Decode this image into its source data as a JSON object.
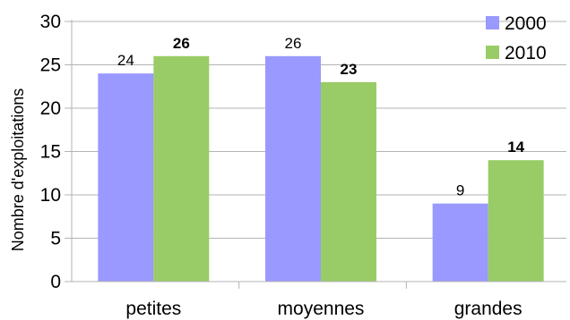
{
  "chart_data": {
    "type": "bar",
    "categories": [
      "petites",
      "moyennes",
      "grandes"
    ],
    "series": [
      {
        "name": "2000",
        "values": [
          24,
          26,
          9
        ],
        "color": "#9999ff",
        "label_bold": false
      },
      {
        "name": "2010",
        "values": [
          26,
          23,
          14
        ],
        "color": "#99cc66",
        "label_bold": true
      }
    ],
    "ylabel": "Nombre d'exploitations",
    "ylim": [
      0,
      30
    ],
    "yticks": [
      0,
      5,
      10,
      15,
      20,
      25,
      30
    ],
    "grid": true,
    "legend_position": "top-right",
    "grid_color": "#b3b3b3"
  }
}
